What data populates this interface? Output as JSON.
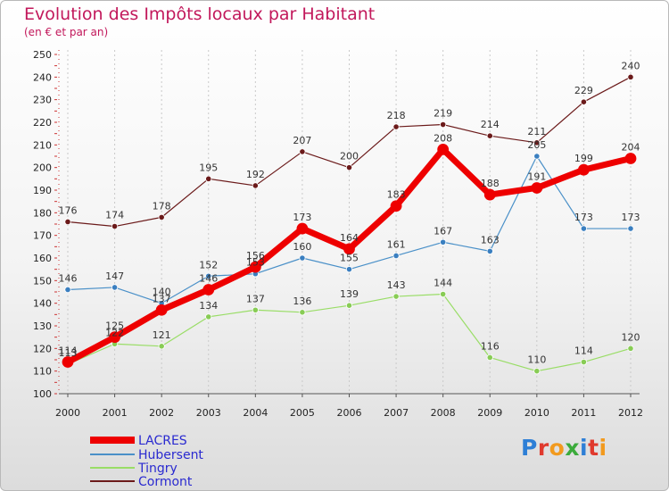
{
  "header": {
    "title": "Evolution des Impôts locaux par Habitant",
    "subtitle": "(en € et par an)"
  },
  "logo": {
    "text": "Proxiti",
    "letter_colors": [
      "#2e7fd6",
      "#e03a2e",
      "#f29a1e",
      "#3cab3c",
      "#2e7fd6",
      "#e03a2e",
      "#f29a1e"
    ]
  },
  "chart_data": {
    "type": "line",
    "title": "Evolution des Impôts locaux par Habitant",
    "subtitle": "(en € et par an)",
    "xlabel": "",
    "ylabel": "",
    "ylim": [
      100,
      250
    ],
    "y_ticks": [
      100,
      110,
      120,
      130,
      140,
      150,
      160,
      170,
      180,
      190,
      200,
      210,
      220,
      230,
      240,
      250
    ],
    "x": [
      "2000",
      "2001",
      "2002",
      "2003",
      "2004",
      "2005",
      "2006",
      "2007",
      "2008",
      "2009",
      "2010",
      "2011",
      "2012"
    ],
    "grid": "vertical dashed",
    "legend_position": "bottom-left",
    "series": [
      {
        "name": "LACRES",
        "color": "#ee0000",
        "values": [
          114,
          125,
          137,
          146,
          156,
          173,
          164,
          183,
          208,
          188,
          191,
          199,
          204
        ]
      },
      {
        "name": "Hubersent",
        "color": "#4a90c8",
        "values": [
          146,
          147,
          140,
          152,
          153,
          160,
          155,
          161,
          167,
          163,
          205,
          173,
          173
        ]
      },
      {
        "name": "Tingry",
        "color": "#99dd66",
        "values": [
          113,
          122,
          121,
          134,
          137,
          136,
          139,
          143,
          144,
          116,
          110,
          114,
          120
        ]
      },
      {
        "name": "Cormont",
        "color": "#6b1a1a",
        "values": [
          176,
          174,
          178,
          195,
          192,
          207,
          200,
          218,
          219,
          214,
          211,
          229,
          240
        ]
      }
    ],
    "data_labels": {
      "LACRES": [
        "114",
        "125",
        "137",
        "146",
        "156",
        "173",
        "164",
        "183",
        "208",
        "188",
        "191",
        "199",
        "204"
      ],
      "Hubersent": [
        "146",
        "147",
        "140",
        "152",
        "153",
        "160",
        "155",
        "161",
        "167",
        "163",
        "205",
        "173",
        "173"
      ],
      "Tingry": [
        "113",
        "122",
        "121",
        "134",
        "137",
        "136",
        "139",
        "143",
        "144",
        "116",
        "110",
        "114",
        "120"
      ],
      "Cormont": [
        "176",
        "174",
        "178",
        "195",
        "192",
        "207",
        "200",
        "218",
        "219",
        "214",
        "211",
        "229",
        "240"
      ]
    }
  }
}
